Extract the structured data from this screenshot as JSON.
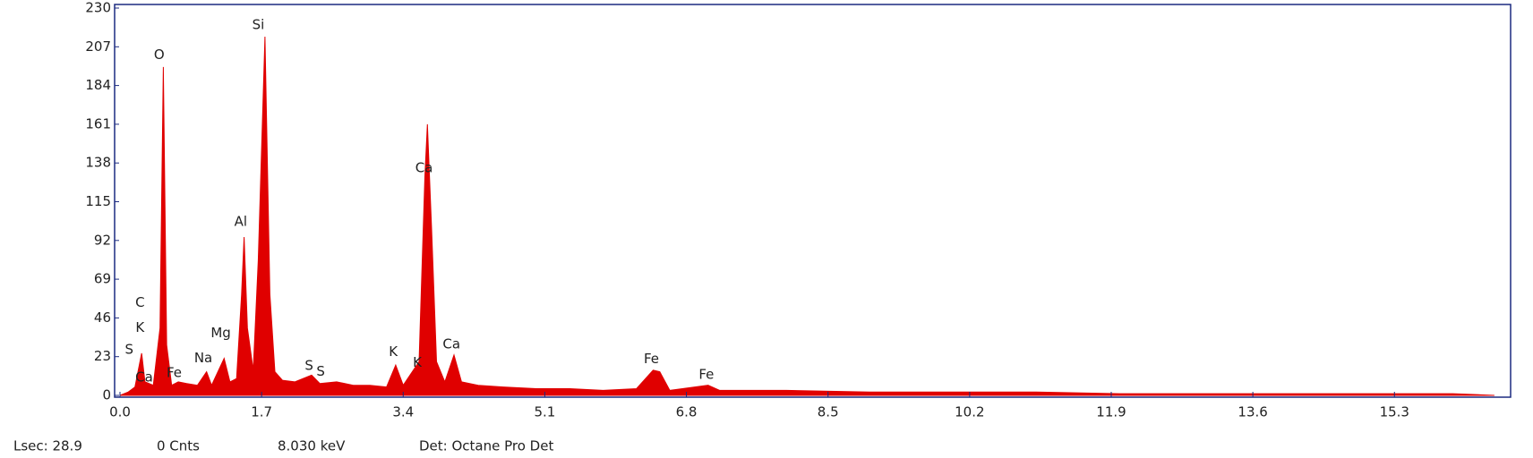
{
  "chart_data": {
    "type": "area",
    "color": "#e00000",
    "frame_color": "#1c2a80",
    "x": [
      0.0,
      0.1,
      0.18,
      0.26,
      0.3,
      0.4,
      0.48,
      0.52,
      0.56,
      0.62,
      0.7,
      0.8,
      0.93,
      1.04,
      1.1,
      1.25,
      1.32,
      1.4,
      1.46,
      1.49,
      1.53,
      1.6,
      1.66,
      1.74,
      1.8,
      1.86,
      1.95,
      2.1,
      2.3,
      2.4,
      2.6,
      2.8,
      3.0,
      3.2,
      3.31,
      3.4,
      3.59,
      3.66,
      3.69,
      3.74,
      3.8,
      3.9,
      4.01,
      4.1,
      4.3,
      4.6,
      5.0,
      5.4,
      5.8,
      6.2,
      6.4,
      6.48,
      6.6,
      7.06,
      7.2,
      8.0,
      9.0,
      10.0,
      11.0,
      12.0,
      13.0,
      14.0,
      15.0,
      16.0,
      16.5
    ],
    "values": [
      0,
      2,
      5,
      25,
      8,
      6,
      40,
      195,
      30,
      6,
      8,
      7,
      6,
      14,
      6,
      22,
      8,
      10,
      60,
      94,
      40,
      15,
      80,
      213,
      60,
      14,
      9,
      8,
      12,
      7,
      8,
      6,
      6,
      5,
      18,
      6,
      20,
      130,
      161,
      100,
      20,
      8,
      24,
      8,
      6,
      5,
      4,
      4,
      3,
      4,
      15,
      14,
      3,
      6,
      3,
      3,
      2,
      2,
      2,
      1,
      1,
      1,
      1,
      1,
      0
    ],
    "xlim": [
      0,
      16.63
    ],
    "ylim": [
      0,
      230
    ],
    "xticks": [
      {
        "value": 0,
        "label": "0.0"
      },
      1.7,
      3.4,
      5.1,
      6.8,
      8.5,
      10.2,
      11.9,
      13.6,
      15.3
    ],
    "yticks": [
      0,
      23,
      46,
      69,
      92,
      115,
      138,
      161,
      184,
      207,
      230
    ],
    "annotations": [
      {
        "text": "Si",
        "x": 1.66,
        "y": 220
      },
      {
        "text": "O",
        "x": 0.47,
        "y": 202
      },
      {
        "text": "Al",
        "x": 1.45,
        "y": 103
      },
      {
        "text": "Ca",
        "x": 3.65,
        "y": 135
      },
      {
        "text": "C",
        "x": 0.24,
        "y": 55
      },
      {
        "text": "K",
        "x": 0.24,
        "y": 40
      },
      {
        "text": "Mg",
        "x": 1.21,
        "y": 37
      },
      {
        "text": "S",
        "x": 0.11,
        "y": 27
      },
      {
        "text": "Na",
        "x": 1.0,
        "y": 22
      },
      {
        "text": "Ca",
        "x": 0.29,
        "y": 10.5
      },
      {
        "text": "Fe",
        "x": 0.65,
        "y": 13.4
      },
      {
        "text": "S",
        "x": 2.27,
        "y": 17.5
      },
      {
        "text": "S",
        "x": 2.41,
        "y": 14
      },
      {
        "text": "K",
        "x": 3.28,
        "y": 25.7
      },
      {
        "text": "K",
        "x": 3.57,
        "y": 19.3
      },
      {
        "text": "Ca",
        "x": 3.98,
        "y": 30.4
      },
      {
        "text": "Fe",
        "x": 6.38,
        "y": 21.6
      },
      {
        "text": "Fe",
        "x": 7.04,
        "y": 12.3
      }
    ],
    "status": [
      "Lsec: 28.9",
      "0 Cnts",
      "8.030 keV",
      "Det: Octane Pro Det"
    ]
  }
}
